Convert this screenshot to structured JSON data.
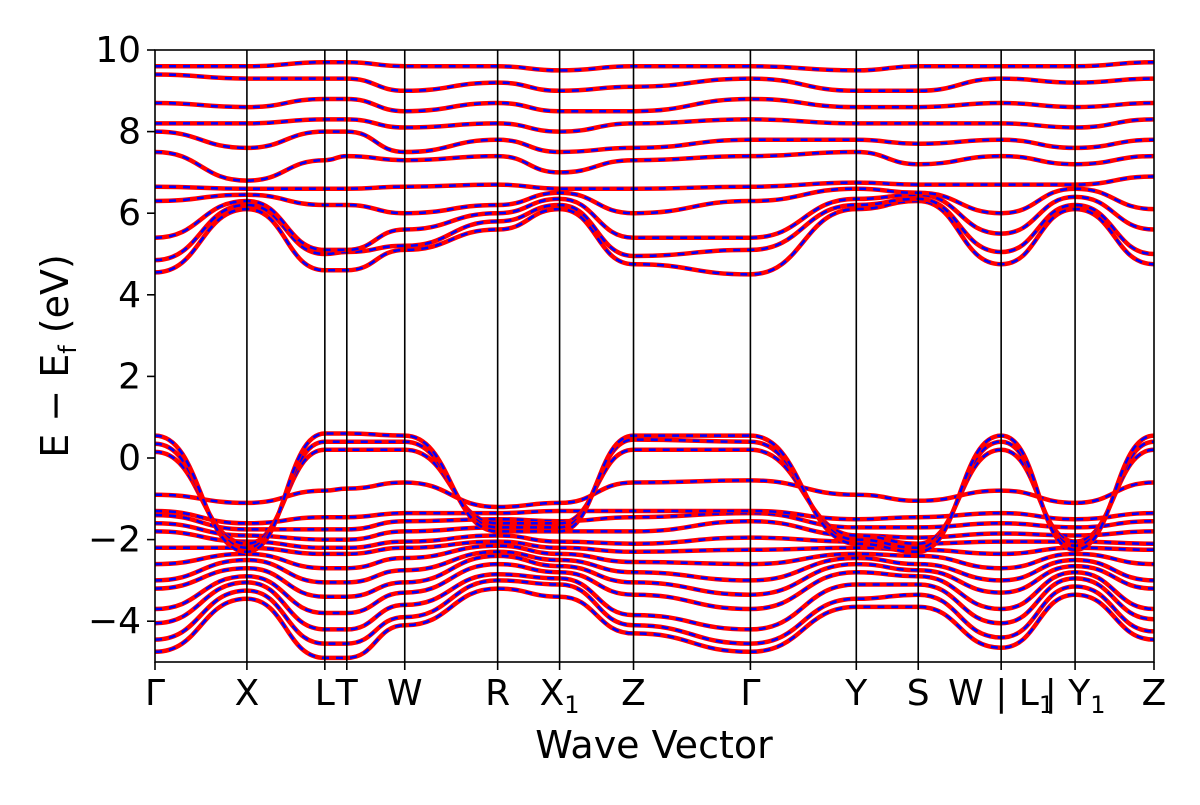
{
  "chart_data": {
    "type": "line",
    "title": "",
    "xlabel": "Wave Vector",
    "ylabel": "E − E_f (eV)",
    "ylabel_parts": {
      "main": "E − E",
      "sub": "f",
      "unit": "(eV)"
    },
    "ylim": [
      -5,
      10
    ],
    "yticks": [
      -4,
      -2,
      0,
      2,
      4,
      6,
      8,
      10
    ],
    "ytick_labels": [
      "−4",
      "−2",
      "0",
      "2",
      "4",
      "6",
      "8",
      "10"
    ],
    "grid": false,
    "legend": "none",
    "colors": {
      "solid": "#ff0000",
      "dashed": "#0000ff",
      "frame": "#000000"
    },
    "x_range": [
      0,
      10
    ],
    "kpoints": [
      {
        "x": 0.0,
        "label": "Γ"
      },
      {
        "x": 0.92,
        "label": "X"
      },
      {
        "x": 1.7,
        "label": "L"
      },
      {
        "x": 1.92,
        "label": "T"
      },
      {
        "x": 2.5,
        "label": "W"
      },
      {
        "x": 3.43,
        "label": "R"
      },
      {
        "x": 4.05,
        "label": "X_1"
      },
      {
        "x": 4.79,
        "label": "Z"
      },
      {
        "x": 5.96,
        "label": "Γ"
      },
      {
        "x": 7.02,
        "label": "Y"
      },
      {
        "x": 7.64,
        "label": "S"
      },
      {
        "x": 8.47,
        "label": "W | L_1"
      },
      {
        "x": 9.21,
        "label": "| Y_1"
      },
      {
        "x": 10.0,
        "label": "Z"
      }
    ],
    "series": [
      {
        "values": [
          -4.75,
          -3.45,
          -4.9,
          -4.9,
          -4.1,
          -3.2,
          -3.4,
          -4.3,
          -4.75,
          -3.65,
          -3.65,
          -4.65,
          -3.35,
          -4.45
        ]
      },
      {
        "values": [
          -4.45,
          -3.25,
          -4.55,
          -4.55,
          -3.9,
          -3.0,
          -3.1,
          -4.1,
          -4.55,
          -3.45,
          -3.35,
          -4.4,
          -3.15,
          -4.25
        ]
      },
      {
        "values": [
          -4.05,
          -3.05,
          -4.2,
          -4.2,
          -3.6,
          -2.85,
          -2.95,
          -3.85,
          -4.2,
          -3.1,
          -3.1,
          -4.05,
          -2.95,
          -3.95
        ]
      },
      {
        "values": [
          -3.7,
          -2.9,
          -3.8,
          -3.8,
          -3.3,
          -2.6,
          -2.8,
          -3.35,
          -3.7,
          -2.8,
          -2.9,
          -3.7,
          -2.8,
          -3.7
        ]
      },
      {
        "values": [
          -3.2,
          -2.7,
          -3.4,
          -3.4,
          -3.05,
          -2.4,
          -2.65,
          -3.05,
          -3.35,
          -2.6,
          -2.75,
          -3.3,
          -2.65,
          -3.2
        ]
      },
      {
        "values": [
          -3.0,
          -2.5,
          -3.05,
          -3.05,
          -2.75,
          -2.3,
          -2.5,
          -2.8,
          -3.0,
          -2.45,
          -2.6,
          -3.0,
          -2.5,
          -3.0
        ]
      },
      {
        "values": [
          -2.6,
          -2.35,
          -2.7,
          -2.7,
          -2.45,
          -2.15,
          -2.35,
          -2.55,
          -2.6,
          -2.35,
          -2.4,
          -2.7,
          -2.35,
          -2.6
        ]
      },
      {
        "values": [
          -2.2,
          -2.2,
          -2.35,
          -2.35,
          -2.2,
          -2.05,
          -2.2,
          -2.3,
          -2.25,
          -2.2,
          -2.25,
          -2.35,
          -2.2,
          -2.25
        ]
      },
      {
        "values": [
          -1.8,
          -2.05,
          -2.2,
          -2.2,
          -2.05,
          -1.9,
          -2.05,
          -2.1,
          -1.95,
          -2.05,
          -2.1,
          -2.05,
          -2.05,
          -2.1
        ]
      },
      {
        "values": [
          -1.6,
          -1.9,
          -2.0,
          -2.0,
          -1.8,
          -1.7,
          -1.8,
          -1.8,
          -1.55,
          -1.9,
          -1.95,
          -1.85,
          -1.9,
          -1.8
        ]
      },
      {
        "values": [
          -1.4,
          -1.75,
          -1.75,
          -1.75,
          -1.55,
          -1.5,
          -1.55,
          -1.45,
          -1.35,
          -1.7,
          -1.7,
          -1.6,
          -1.7,
          -1.55
        ]
      },
      {
        "values": [
          -1.3,
          -1.6,
          -1.45,
          -1.45,
          -1.35,
          -1.35,
          -1.3,
          -1.3,
          -1.3,
          -1.5,
          -1.45,
          -1.35,
          -1.5,
          -1.35
        ]
      },
      {
        "values": [
          -0.9,
          -1.1,
          -0.8,
          -0.75,
          -0.6,
          -1.2,
          -1.1,
          -0.6,
          -0.55,
          -0.9,
          -1.05,
          -0.8,
          -1.1,
          -0.6
        ]
      },
      {
        "values": [
          0.15,
          -2.1,
          0.2,
          0.2,
          0.2,
          -1.6,
          -1.6,
          0.2,
          0.2,
          -1.9,
          -2.1,
          0.2,
          -2.05,
          0.2
        ]
      },
      {
        "values": [
          0.35,
          -2.2,
          0.4,
          0.4,
          0.4,
          -1.7,
          -1.7,
          0.45,
          0.4,
          -2.0,
          -2.2,
          0.4,
          -2.15,
          0.4
        ]
      },
      {
        "values": [
          0.55,
          -2.3,
          0.6,
          0.6,
          0.55,
          -1.8,
          -1.8,
          0.55,
          0.55,
          -2.1,
          -2.3,
          0.55,
          -2.25,
          0.55
        ]
      },
      {
        "values": [
          4.55,
          6.1,
          4.6,
          4.6,
          5.1,
          5.6,
          6.1,
          4.75,
          4.5,
          6.1,
          6.3,
          4.75,
          6.1,
          4.75
        ]
      },
      {
        "values": [
          4.85,
          6.2,
          5.0,
          5.05,
          5.2,
          5.8,
          6.2,
          4.95,
          5.1,
          6.2,
          6.35,
          5.05,
          6.2,
          5.0
        ]
      },
      {
        "values": [
          5.4,
          6.3,
          5.1,
          5.1,
          5.6,
          6.0,
          6.35,
          5.4,
          5.4,
          6.35,
          6.45,
          5.5,
          6.4,
          5.6
        ]
      },
      {
        "values": [
          6.3,
          6.45,
          6.2,
          6.2,
          6.0,
          6.2,
          6.5,
          6.0,
          6.3,
          6.6,
          6.5,
          6.0,
          6.6,
          6.1
        ]
      },
      {
        "values": [
          6.65,
          6.6,
          6.6,
          6.6,
          6.65,
          6.7,
          6.6,
          6.6,
          6.65,
          6.75,
          6.7,
          6.7,
          6.7,
          6.9
        ]
      },
      {
        "values": [
          7.5,
          6.8,
          7.3,
          7.4,
          7.3,
          7.4,
          7.0,
          7.3,
          7.4,
          7.5,
          7.2,
          7.4,
          7.2,
          7.4
        ]
      },
      {
        "values": [
          8.0,
          7.6,
          8.0,
          8.0,
          7.5,
          7.8,
          7.5,
          7.6,
          7.8,
          7.8,
          7.7,
          7.8,
          7.6,
          7.8
        ]
      },
      {
        "values": [
          8.2,
          8.2,
          8.3,
          8.3,
          8.1,
          8.2,
          8.0,
          8.2,
          8.3,
          8.2,
          8.2,
          8.2,
          8.1,
          8.3
        ]
      },
      {
        "values": [
          8.7,
          8.6,
          8.8,
          8.8,
          8.5,
          8.7,
          8.5,
          8.5,
          8.8,
          8.6,
          8.6,
          8.7,
          8.6,
          8.7
        ]
      },
      {
        "values": [
          9.4,
          9.3,
          9.3,
          9.3,
          9.0,
          9.2,
          9.0,
          9.1,
          9.3,
          9.0,
          9.0,
          9.3,
          9.2,
          9.3
        ]
      },
      {
        "values": [
          9.6,
          9.6,
          9.7,
          9.7,
          9.6,
          9.6,
          9.5,
          9.6,
          9.6,
          9.5,
          9.6,
          9.6,
          9.6,
          9.7
        ]
      }
    ]
  }
}
